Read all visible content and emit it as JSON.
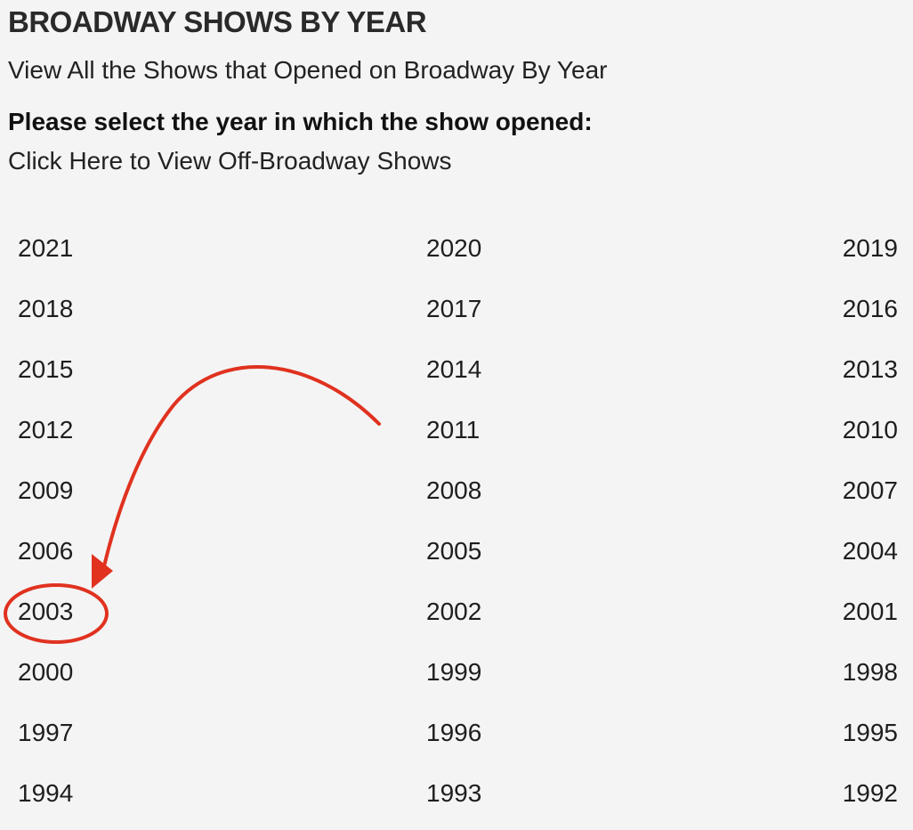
{
  "header": {
    "title": "BROADWAY SHOWS BY YEAR",
    "subtitle": "View All the Shows that Opened on Broadway By Year",
    "prompt": "Please select the year in which the show opened:",
    "off_broadway_link": "Click Here to View Off-Broadway Shows"
  },
  "years": [
    [
      "2021",
      "2020",
      "2019"
    ],
    [
      "2018",
      "2017",
      "2016"
    ],
    [
      "2015",
      "2014",
      "2013"
    ],
    [
      "2012",
      "2011",
      "2010"
    ],
    [
      "2009",
      "2008",
      "2007"
    ],
    [
      "2006",
      "2005",
      "2004"
    ],
    [
      "2003",
      "2002",
      "2001"
    ],
    [
      "2000",
      "1999",
      "1998"
    ],
    [
      "1997",
      "1996",
      "1995"
    ],
    [
      "1994",
      "1993",
      "1992"
    ]
  ],
  "annotation": {
    "highlighted_year": "2003",
    "color": "#e0321f"
  }
}
